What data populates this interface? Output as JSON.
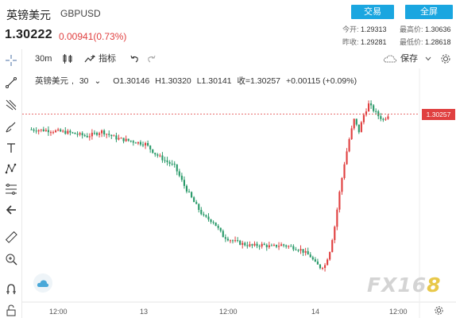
{
  "header": {
    "title": "英镑美元",
    "symbol": "GBPUSD",
    "price": "1.30222",
    "change": "0.00941(0.73%)",
    "buttons": {
      "trade": "交易",
      "fullscreen": "全屏"
    },
    "stats": {
      "open_label": "今开:",
      "open": "1.29313",
      "high_label": "最高价:",
      "high": "1.30636",
      "prev_label": "昨收:",
      "prev": "1.29281",
      "low_label": "最低价:",
      "low": "1.28618"
    }
  },
  "toolbar": {
    "interval": "30m",
    "indicators_label": "指标",
    "save_label": "保存"
  },
  "legend": {
    "name": "英镑美元",
    "interval": "30",
    "o": "O1.30146",
    "h": "H1.30320",
    "l": "L1.30141",
    "c": "收=1.30257",
    "chg": "+0.00115 (+0.09%)"
  },
  "price_tag": "1.30257",
  "watermark": {
    "a": "FX1",
    "b": "6",
    "c": "8"
  },
  "x_labels": [
    "12:00",
    "13",
    "12:00",
    "14",
    "12:00"
  ],
  "colors": {
    "up": "#e04040",
    "down": "#2a9a6a",
    "accent": "#1aa6e0"
  },
  "chart_data": {
    "type": "candlestick",
    "x_labels": [
      "12:00",
      "13",
      "12:00",
      "14",
      "12:00"
    ],
    "last_price": 1.30257,
    "close_series": [
      [
        0,
        1.301
      ],
      [
        8,
        1.3009
      ],
      [
        16,
        1.3007
      ],
      [
        24,
        1.3003
      ],
      [
        30,
        1.3008
      ],
      [
        36,
        1.3001
      ],
      [
        42,
        1.2998
      ],
      [
        48,
        1.2995
      ],
      [
        52,
        1.2985
      ],
      [
        56,
        1.2978
      ],
      [
        60,
        1.2972
      ],
      [
        64,
        1.2952
      ],
      [
        68,
        1.2935
      ],
      [
        72,
        1.292
      ],
      [
        76,
        1.2915
      ],
      [
        80,
        1.29
      ],
      [
        84,
        1.2895
      ],
      [
        88,
        1.2892
      ],
      [
        92,
        1.289
      ],
      [
        96,
        1.2891
      ],
      [
        100,
        1.2889
      ],
      [
        104,
        1.2891
      ],
      [
        108,
        1.2889
      ],
      [
        112,
        1.2886
      ],
      [
        116,
        1.2879
      ],
      [
        118,
        1.2872
      ],
      [
        120,
        1.2868
      ],
      [
        122,
        1.287
      ],
      [
        124,
        1.2885
      ],
      [
        126,
        1.291
      ],
      [
        128,
        1.2945
      ],
      [
        130,
        1.2975
      ],
      [
        132,
        1.3
      ],
      [
        134,
        1.302
      ],
      [
        136,
        1.3008
      ],
      [
        138,
        1.3025
      ],
      [
        140,
        1.3036
      ],
      [
        142,
        1.303
      ],
      [
        144,
        1.3024
      ],
      [
        146,
        1.302
      ],
      [
        148,
        1.3025
      ]
    ]
  }
}
